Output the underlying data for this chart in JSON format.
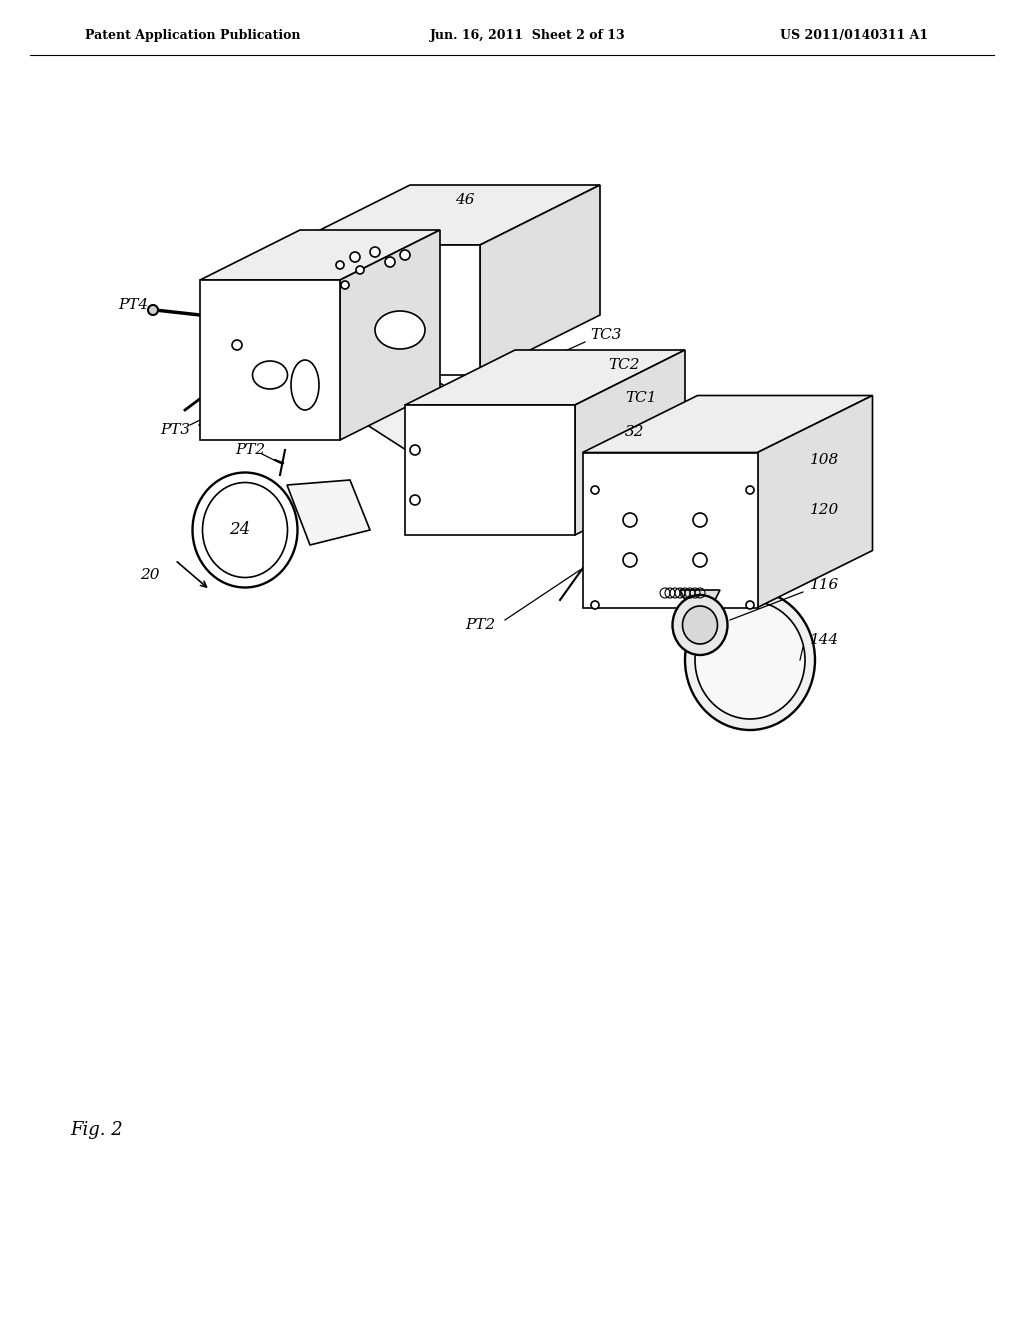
{
  "background_color": "#ffffff",
  "header_left": "Patent Application Publication",
  "header_center": "Jun. 16, 2011  Sheet 2 of 13",
  "header_right": "US 2011/0140311 A1",
  "figure_label": "Fig. 2",
  "ref_number_20": "20",
  "ref_number_24": "24",
  "ref_number_32": "32",
  "ref_number_46": "46",
  "ref_number_108": "108",
  "ref_number_116": "116",
  "ref_number_120": "120",
  "ref_number_144": "144",
  "ref_PT2_1": "PT2",
  "ref_PT2_2": "PT2",
  "ref_PT3": "PT3",
  "ref_PT4": "PT4",
  "ref_TC1": "TC1",
  "ref_TC2": "TC2",
  "ref_TC3": "TC3",
  "line_color": "#000000",
  "line_width": 1.2,
  "text_color": "#000000"
}
